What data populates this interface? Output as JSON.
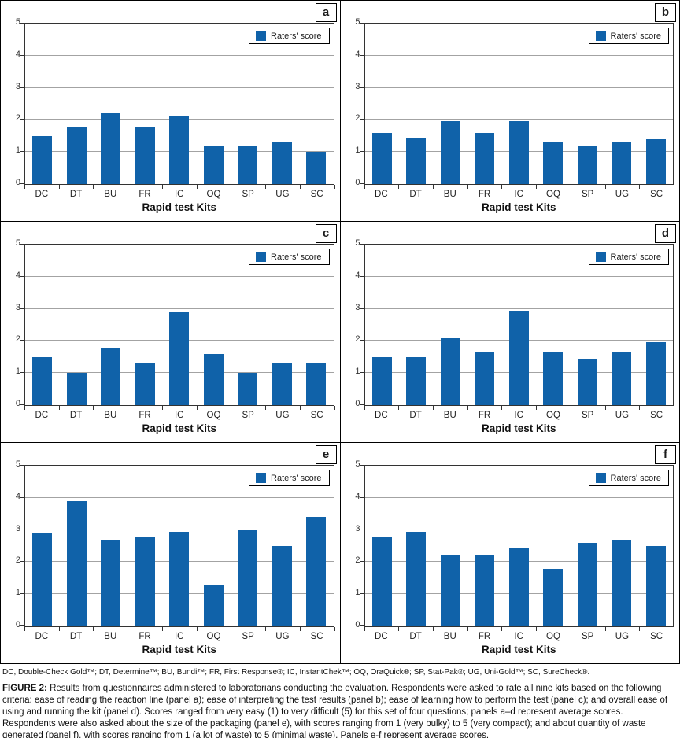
{
  "figure": {
    "abbreviations": "DC, Double-Check Gold™; DT, Determine™; BU, Bundi™; FR, First Response®; IC, InstantChek™; OQ, OraQuick®; SP, Stat-Pak®; UG, Uni-Gold™; SC, SureCheck®.",
    "caption_label": "FIGURE 2:",
    "caption_text": " Results from questionnaires administered to laboratorians conducting the evaluation. Respondents were asked to rate all nine kits based on the following criteria: ease of reading the reaction line (panel a); ease of interpreting the test results (panel b); ease of learning how to perform the test (panel c); and overall ease of using and running the kit (panel d). Scores ranged from very easy (1) to very difficult (5) for this set of four questions; panels a–d represent average scores. Respondents were also asked about the size of the packaging (panel e), with scores ranging from 1 (very bulky) to 5 (very compact); and about quantity of waste generated (panel f), with scores ranging from 1 (a lot of waste) to 5 (minimal waste). Panels e-f represent average scores."
  },
  "colors": {
    "bar": "#1062A9",
    "gridline": "#A3A3A3",
    "axis": "#333333"
  },
  "chart_data": [
    {
      "type": "bar",
      "panel": "a",
      "legend": "Raters' score",
      "xlabel": "Rapid test Kits",
      "ylabel": "",
      "ylim": [
        0,
        5
      ],
      "yticks": [
        5,
        4,
        3,
        2,
        1,
        0
      ],
      "grid": true,
      "legend_position": "top-right",
      "categories": [
        "DC",
        "DT",
        "BU",
        "FR",
        "IC",
        "OQ",
        "SP",
        "UG",
        "SC"
      ],
      "values": [
        1.5,
        1.8,
        2.2,
        1.8,
        2.1,
        1.2,
        1.2,
        1.3,
        1.0
      ]
    },
    {
      "type": "bar",
      "panel": "b",
      "legend": "Raters' score",
      "xlabel": "Rapid test Kits",
      "ylabel": "",
      "ylim": [
        0,
        5
      ],
      "yticks": [
        5,
        4,
        3,
        2,
        1,
        0
      ],
      "grid": true,
      "legend_position": "top-right",
      "categories": [
        "DC",
        "DT",
        "BU",
        "FR",
        "IC",
        "OQ",
        "SP",
        "UG",
        "SC"
      ],
      "values": [
        1.6,
        1.45,
        1.95,
        1.6,
        1.95,
        1.3,
        1.2,
        1.3,
        1.4
      ]
    },
    {
      "type": "bar",
      "panel": "c",
      "legend": "Raters' score",
      "xlabel": "Rapid test Kits",
      "ylabel": "",
      "ylim": [
        0,
        5
      ],
      "yticks": [
        5,
        4,
        3,
        2,
        1,
        0
      ],
      "grid": true,
      "legend_position": "top-right",
      "categories": [
        "DC",
        "DT",
        "BU",
        "FR",
        "IC",
        "OQ",
        "SP",
        "UG",
        "SC"
      ],
      "values": [
        1.5,
        1.0,
        1.8,
        1.3,
        2.9,
        1.6,
        1.0,
        1.3,
        1.3
      ]
    },
    {
      "type": "bar",
      "panel": "d",
      "legend": "Raters' score",
      "xlabel": "Rapid test Kits",
      "ylabel": "",
      "ylim": [
        0,
        5
      ],
      "yticks": [
        5,
        4,
        3,
        2,
        1,
        0
      ],
      "grid": true,
      "legend_position": "top-right",
      "categories": [
        "DC",
        "DT",
        "BU",
        "FR",
        "IC",
        "OQ",
        "SP",
        "UG",
        "SC"
      ],
      "values": [
        1.5,
        1.5,
        2.1,
        1.65,
        2.95,
        1.65,
        1.45,
        1.65,
        1.95
      ]
    },
    {
      "type": "bar",
      "panel": "e",
      "legend": "Raters' score",
      "xlabel": "Rapid test Kits",
      "ylabel": "",
      "ylim": [
        0,
        5
      ],
      "yticks": [
        5,
        4,
        3,
        2,
        1,
        0
      ],
      "grid": true,
      "legend_position": "top-right",
      "categories": [
        "DC",
        "DT",
        "BU",
        "FR",
        "IC",
        "OQ",
        "SP",
        "UG",
        "SC"
      ],
      "values": [
        2.9,
        3.9,
        2.7,
        2.8,
        2.95,
        1.3,
        3.0,
        2.5,
        3.4
      ]
    },
    {
      "type": "bar",
      "panel": "f",
      "legend": "Raters' score",
      "xlabel": "Rapid test Kits",
      "ylabel": "",
      "ylim": [
        0,
        5
      ],
      "yticks": [
        5,
        4,
        3,
        2,
        1,
        0
      ],
      "grid": true,
      "legend_position": "top-right",
      "categories": [
        "DC",
        "DT",
        "BU",
        "FR",
        "IC",
        "OQ",
        "SP",
        "UG",
        "SC"
      ],
      "values": [
        2.8,
        2.95,
        2.2,
        2.2,
        2.45,
        1.8,
        2.6,
        2.7,
        2.5
      ]
    }
  ]
}
